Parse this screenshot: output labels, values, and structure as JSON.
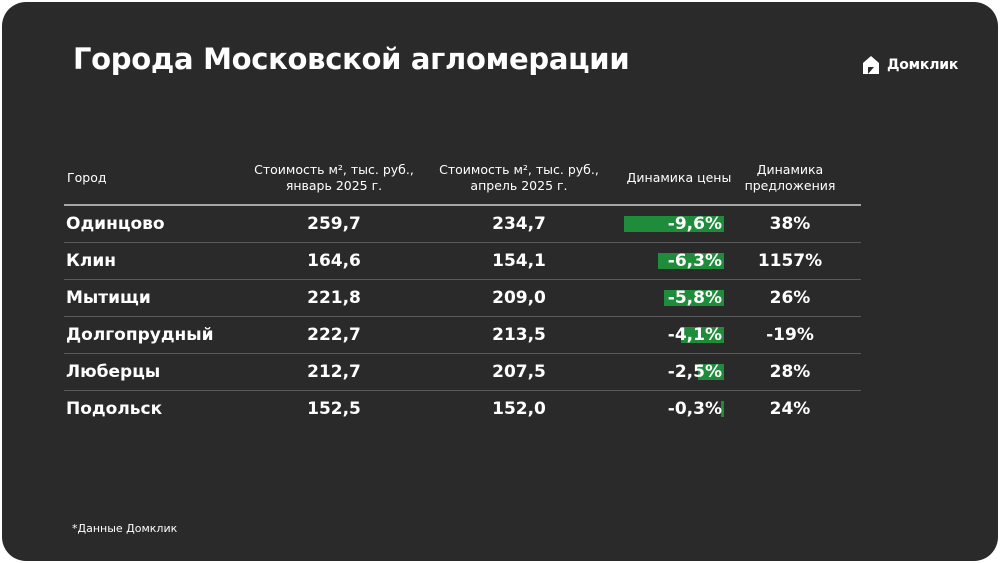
{
  "title": "Города Московской агломерации",
  "logo_text": "Домклик",
  "table": {
    "headers": {
      "city": "Город",
      "price_jan": [
        "Стоимость м², тыс. руб.,",
        "январь 2025 г."
      ],
      "price_apr": [
        "Стоимость м², тыс. руб.,",
        "апрель 2025 г."
      ],
      "price_dynamics": "Динамика цены",
      "supply_dynamics": [
        "Динамика",
        "предложения"
      ]
    },
    "rows": [
      {
        "city": "Одинцово",
        "price_jan": "259,7",
        "price_apr": "234,7",
        "price_dynamics": "-9,6%",
        "price_dynamics_value": -9.6,
        "supply_dynamics": "38%"
      },
      {
        "city": "Клин",
        "price_jan": "164,6",
        "price_apr": "154,1",
        "price_dynamics": "-6,3%",
        "price_dynamics_value": -6.3,
        "supply_dynamics": "1157%"
      },
      {
        "city": "Мытищи",
        "price_jan": "221,8",
        "price_apr": "209,0",
        "price_dynamics": "-5,8%",
        "price_dynamics_value": -5.8,
        "supply_dynamics": "26%"
      },
      {
        "city": "Долгопрудный",
        "price_jan": "222,7",
        "price_apr": "213,5",
        "price_dynamics": "-4,1%",
        "price_dynamics_value": -4.1,
        "supply_dynamics": "-19%"
      },
      {
        "city": "Люберцы",
        "price_jan": "212,7",
        "price_apr": "207,5",
        "price_dynamics": "-2,5%",
        "price_dynamics_value": -2.5,
        "supply_dynamics": "28%"
      },
      {
        "city": "Подольск",
        "price_jan": "152,5",
        "price_apr": "152,0",
        "price_dynamics": "-0,3%",
        "price_dynamics_value": -0.3,
        "supply_dynamics": "24%"
      }
    ]
  },
  "colors": {
    "background": "#2a2a2a",
    "bar": "#1f8c3c",
    "text": "#ffffff"
  },
  "footnote": "*Данные Домклик"
}
